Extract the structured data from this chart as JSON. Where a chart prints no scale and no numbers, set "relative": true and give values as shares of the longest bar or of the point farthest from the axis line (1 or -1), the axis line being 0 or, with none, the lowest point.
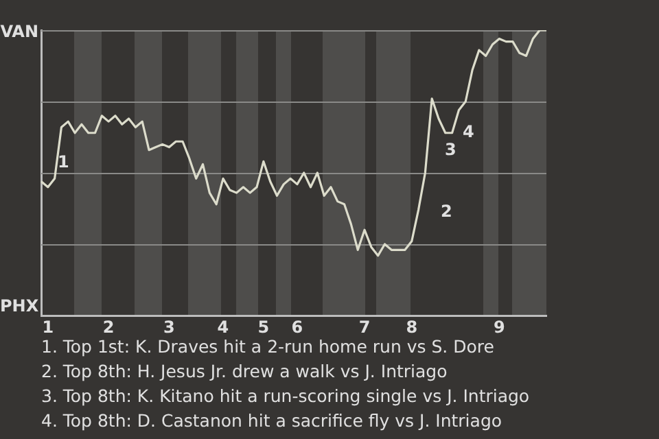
{
  "chart_data": {
    "type": "line",
    "relative": true,
    "categories": [
      null,
      "1",
      null,
      null,
      null,
      null,
      null,
      null,
      null,
      null,
      "2",
      null,
      null,
      null,
      null,
      null,
      null,
      null,
      null,
      "3",
      null,
      null,
      null,
      null,
      null,
      null,
      null,
      "4",
      null,
      null,
      null,
      null,
      null,
      "5",
      null,
      null,
      null,
      null,
      "6",
      null,
      null,
      null,
      null,
      null,
      null,
      null,
      null,
      null,
      "7",
      null,
      null,
      null,
      null,
      null,
      null,
      "8",
      null,
      null,
      null,
      null,
      null,
      null,
      null,
      null,
      null,
      null,
      null,
      null,
      "9",
      null,
      null,
      null,
      null,
      null,
      null,
      null
    ],
    "series": [
      {
        "color": "#dcdccb",
        "values": [
          0.47,
          0.45,
          0.48,
          0.66,
          0.68,
          0.64,
          0.67,
          0.64,
          0.64,
          0.7,
          0.68,
          0.7,
          0.67,
          0.69,
          0.66,
          0.68,
          0.58,
          0.59,
          0.6,
          0.59,
          0.61,
          0.61,
          0.55,
          0.48,
          0.53,
          0.43,
          0.39,
          0.48,
          0.44,
          0.43,
          0.45,
          0.43,
          0.45,
          0.54,
          0.47,
          0.42,
          0.46,
          0.48,
          0.46,
          0.5,
          0.45,
          0.5,
          0.42,
          0.45,
          0.4,
          0.39,
          0.32,
          0.23,
          0.3,
          0.24,
          0.21,
          0.25,
          0.23,
          0.23,
          0.23,
          0.26,
          0.37,
          0.5,
          0.76,
          0.69,
          0.64,
          0.64,
          0.72,
          0.75,
          0.86,
          0.93,
          0.91,
          0.95,
          0.97,
          0.96,
          0.96,
          0.92,
          0.91,
          0.97,
          1,
          1
        ]
      }
    ],
    "legend": false,
    "marker": "none",
    "line_style": "solid",
    "ref_lines": [
      {
        "axis": "y",
        "value": 0.25,
        "color": "#8a8a88"
      },
      {
        "axis": "y",
        "value": 0.5,
        "color": "#8a8a88"
      },
      {
        "axis": "y",
        "value": 0.75,
        "color": "#8a8a88"
      },
      {
        "axis": "y",
        "value": 1,
        "color": "#8a8a88"
      }
    ],
    "annotations": [
      "VAN",
      "PHX",
      "1",
      "2",
      "3",
      "4",
      "1. Top 1st: K. Draves hit a 2-run home run vs S. Dore",
      "2. Top 8th: H. Jesus Jr. drew a walk vs J. Intriago",
      "3. Top 8th: K. Kitano hit a run-scoring single vs J. Intriago",
      "4. Top 8th: D. Castanon hit a sacrifice fly vs J. Intriago"
    ]
  }
}
